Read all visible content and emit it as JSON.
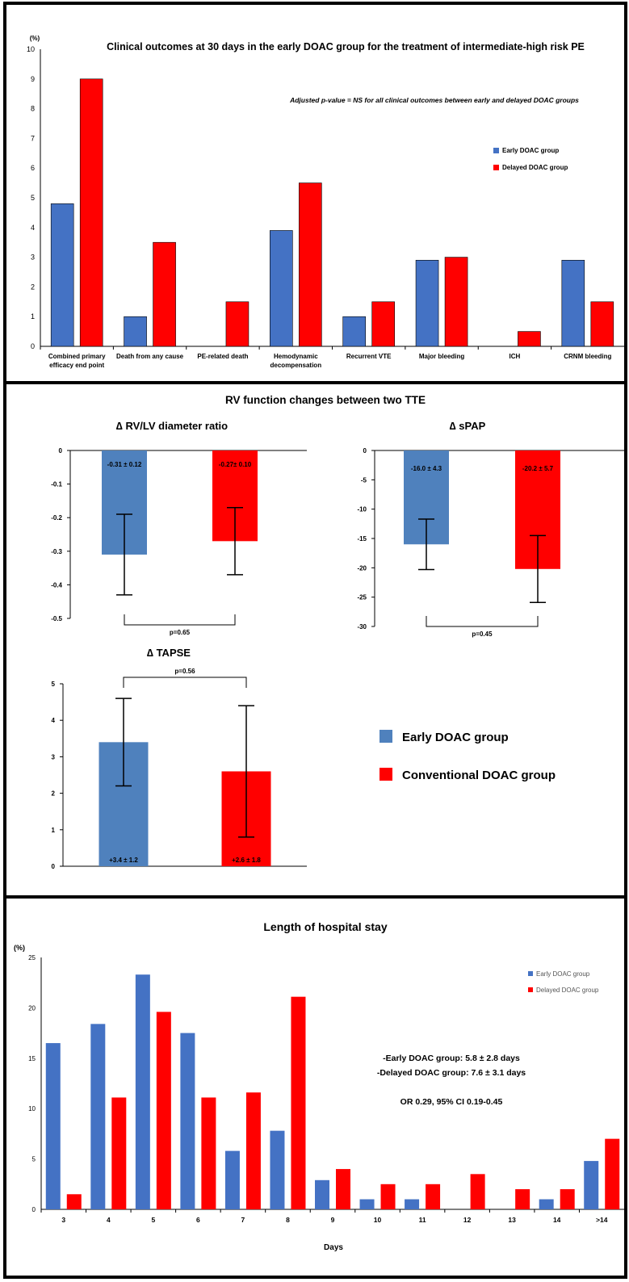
{
  "colors": {
    "early": "#4472C4",
    "delayed": "#FF0000",
    "early_tte": "#4F81BD",
    "conventional": "#FF0000"
  },
  "chart_data": [
    {
      "id": "clinical-outcomes",
      "type": "bar",
      "title": "Clinical outcomes at 30 days in the early DOAC group for the treatment of intermediate-high risk PE",
      "annotation": "Adjusted p-value = NS for all clinical outcomes between early and delayed DOAC groups",
      "y_unit": "(%)",
      "ylim": [
        0,
        10
      ],
      "yticks": [
        "0",
        "1",
        "2",
        "3",
        "4",
        "5",
        "6",
        "7",
        "8",
        "9",
        "10"
      ],
      "categories": [
        [
          "Combined primary",
          "efficacy end point"
        ],
        [
          "Death from any cause"
        ],
        [
          "PE-related death"
        ],
        [
          "Hemodynamic",
          "decompensation"
        ],
        [
          "Recurrent VTE"
        ],
        [
          "Major bleeding"
        ],
        [
          "ICH"
        ],
        [
          "CRNM bleeding"
        ]
      ],
      "series": [
        {
          "name": "Early DOAC group",
          "values": [
            4.8,
            1.0,
            0,
            3.9,
            1.0,
            2.9,
            0,
            2.9
          ]
        },
        {
          "name": "Delayed DOAC group",
          "values": [
            9.0,
            3.5,
            1.5,
            5.5,
            1.5,
            3.0,
            0.5,
            1.5
          ]
        }
      ],
      "legend": "right"
    },
    {
      "id": "rv-function",
      "panel_title": "RV function changes between two TTE",
      "legend": [
        "Early DOAC group",
        "Conventional DOAC group"
      ],
      "subcharts": [
        {
          "id": "rvlv",
          "type": "bar",
          "title": "∆ RV/LV diameter ratio",
          "ylim": [
            -0.5,
            0
          ],
          "yticks": [
            "0",
            "-0.1",
            "-0.2",
            "-0.3",
            "-0.4",
            "-0.5"
          ],
          "values": [
            -0.31,
            -0.27
          ],
          "errors": [
            0.12,
            0.1
          ],
          "labels": [
            "-0.31 ± 0.12",
            "-0.27± 0.10"
          ],
          "p_value": "p=0.65"
        },
        {
          "id": "spap",
          "type": "bar",
          "title": "∆ sPAP",
          "ylim": [
            -30,
            0
          ],
          "yticks": [
            "0",
            "-5",
            "-10",
            "-15",
            "-20",
            "-25",
            "-30"
          ],
          "values": [
            -16.0,
            -20.2
          ],
          "errors": [
            4.3,
            5.7
          ],
          "labels": [
            "-16.0 ± 4.3",
            "-20.2 ± 5.7"
          ],
          "p_value": "p=0.45"
        },
        {
          "id": "tapse",
          "type": "bar",
          "title": "∆ TAPSE",
          "ylim": [
            0,
            5
          ],
          "yticks": [
            "0",
            "1",
            "2",
            "3",
            "4",
            "5"
          ],
          "values": [
            3.4,
            2.6
          ],
          "errors": [
            1.2,
            1.8
          ],
          "labels": [
            "+3.4 ± 1.2",
            "+2.6 ± 1.8"
          ],
          "p_value": "p=0.56"
        }
      ]
    },
    {
      "id": "hospital-stay",
      "type": "bar",
      "title": "Length of hospital stay",
      "y_unit": "(%)",
      "xlabel": "Days",
      "ylim": [
        0,
        25
      ],
      "yticks": [
        "0",
        "5",
        "10",
        "15",
        "20",
        "25"
      ],
      "categories": [
        "3",
        "4",
        "5",
        "6",
        "7",
        "8",
        "9",
        "10",
        "11",
        "12",
        "13",
        "14",
        ">14"
      ],
      "series": [
        {
          "name": "Early DOAC group",
          "values": [
            16.5,
            18.4,
            23.3,
            17.5,
            5.8,
            7.8,
            2.9,
            1.0,
            1.0,
            0,
            0,
            1.0,
            4.8
          ]
        },
        {
          "name": "Delayed DOAC group",
          "values": [
            1.5,
            11.1,
            19.6,
            11.1,
            11.6,
            21.1,
            4.0,
            2.5,
            2.5,
            3.5,
            2.0,
            2.0,
            7.0
          ]
        }
      ],
      "notes": [
        "-Early DOAC group: 5.8 ± 2.8 days",
        "-Delayed DOAC group: 7.6 ± 3.1 days",
        "OR 0.29, 95% CI 0.19-0.45"
      ],
      "legend": "top-right"
    }
  ]
}
